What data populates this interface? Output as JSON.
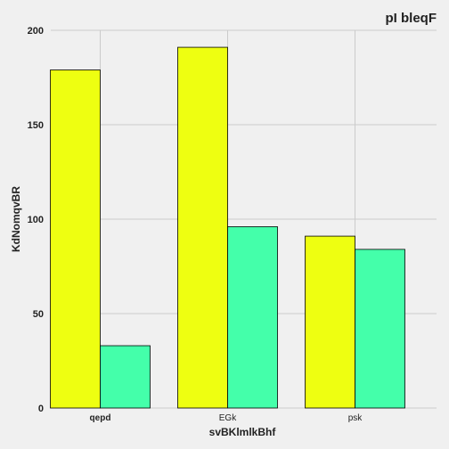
{
  "chart_data": {
    "type": "bar",
    "title": "pI bleqF",
    "xlabel": "svBKlmlkBhf",
    "ylabel": "KdNomqvBR",
    "categories": [
      "qepd",
      "EGk",
      "psk"
    ],
    "category_bold": [
      true,
      false,
      false
    ],
    "series": [
      {
        "values": [
          179,
          191,
          91
        ],
        "color": "#eeff11"
      },
      {
        "values": [
          33,
          96,
          84
        ],
        "color": "#44ffaa"
      }
    ],
    "ylim": [
      0,
      200
    ],
    "yticks": [
      0,
      50,
      100,
      150,
      200
    ],
    "grid": true,
    "legend": "none",
    "background": "#f0f0f0"
  }
}
